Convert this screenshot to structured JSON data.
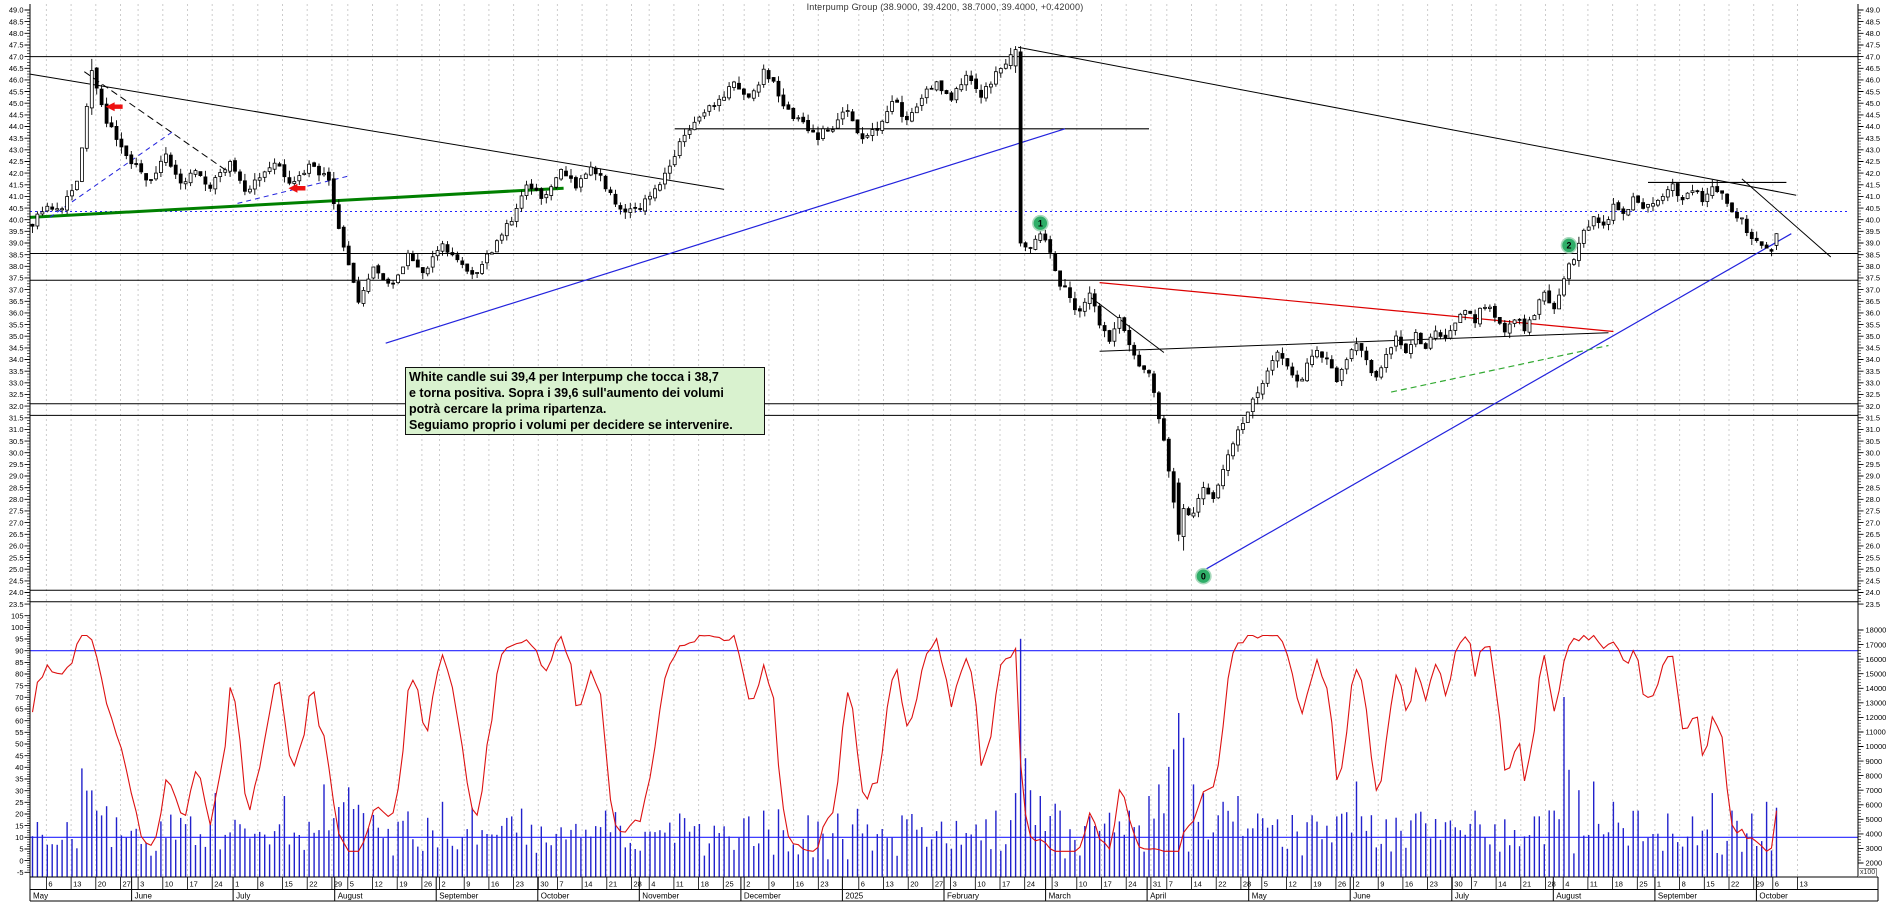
{
  "title": "Interpump Group (38.9000, 39.4200, 38.7000, 39.4000, +0.42000)",
  "scale_note": "x100",
  "annotation": {
    "lines": [
      "White candle sui 39,4 per Interpump che tocca i 38,7",
      "e torna positiva. Sopra i 39,6 sull'aumento dei volumi",
      "potrà cercare la prima ripartenza.",
      "Seguiamo proprio i volumi per decidere se intervenire."
    ]
  },
  "chart_data": {
    "type": "candlestick",
    "instrument": "Interpump Group",
    "last_quote": {
      "open": 38.9,
      "high": 39.42,
      "low": 38.7,
      "close": 39.4,
      "change": "+0.42000"
    },
    "price_axis": {
      "min": 23.5,
      "max": 49.0,
      "step": 0.5,
      "tick_labels": [
        "49.0",
        "48.5",
        "48.0",
        "47.5",
        "47.0",
        "46.5",
        "46.0",
        "45.5",
        "45.0",
        "44.5",
        "44.0",
        "43.5",
        "43.0",
        "42.5",
        "42.0",
        "41.5",
        "41.0",
        "40.5",
        "40.0",
        "39.5",
        "39.0",
        "38.5",
        "38.0",
        "37.5",
        "37.0",
        "36.5",
        "36.0",
        "35.5",
        "35.0",
        "34.5",
        "34.0",
        "33.5",
        "33.0",
        "32.5",
        "32.0",
        "31.5",
        "31.0",
        "30.5",
        "30.0",
        "29.5",
        "29.0",
        "28.5",
        "28.0",
        "27.5",
        "27.0",
        "26.5",
        "26.0",
        "25.5",
        "25.0",
        "24.5",
        "24.0",
        "23.5"
      ]
    },
    "oscillator_axis": {
      "min": -5,
      "max": 105,
      "step": 5,
      "bands": [
        90,
        10
      ],
      "tick_labels": [
        "105",
        "100",
        "95",
        "90",
        "85",
        "80",
        "75",
        "70",
        "65",
        "60",
        "55",
        "50",
        "45",
        "40",
        "35",
        "30",
        "25",
        "20",
        "15",
        "10",
        "5",
        "0",
        "-5"
      ]
    },
    "oscillator": {
      "type": "stochastic",
      "lookback": 12
    },
    "volume_axis": {
      "unit": "x100",
      "step": 1000,
      "tick_labels": [
        "18000",
        "17000",
        "16000",
        "15000",
        "14000",
        "13000",
        "12000",
        "11000",
        "10000",
        "9000",
        "8000",
        "7000",
        "6000",
        "5000",
        "4000",
        "3000",
        "2000"
      ]
    },
    "x_axis": {
      "months": [
        {
          "label": "May",
          "days": [
            6,
            13,
            20,
            27
          ]
        },
        {
          "label": "June",
          "days": [
            3,
            10,
            17,
            24
          ]
        },
        {
          "label": "July",
          "days": [
            1,
            8,
            15,
            22,
            29
          ]
        },
        {
          "label": "August",
          "days": [
            5,
            12,
            19,
            26
          ]
        },
        {
          "label": "September",
          "days": [
            2,
            9,
            16,
            23,
            30
          ]
        },
        {
          "label": "October",
          "days": [
            7,
            14,
            21,
            28
          ]
        },
        {
          "label": "November",
          "days": [
            4,
            11,
            18,
            25
          ]
        },
        {
          "label": "December",
          "days": [
            2,
            9,
            16,
            23
          ]
        },
        {
          "label": "2025",
          "days": [
            6,
            13,
            20,
            27
          ]
        },
        {
          "label": "February",
          "days": [
            3,
            10,
            17,
            24
          ]
        },
        {
          "label": "March",
          "days": [
            3,
            10,
            17,
            24,
            31
          ]
        },
        {
          "label": "April",
          "days": [
            7,
            14,
            22,
            28
          ]
        },
        {
          "label": "May",
          "days": [
            5,
            12,
            19,
            26
          ]
        },
        {
          "label": "June",
          "days": [
            2,
            9,
            16,
            23,
            30
          ]
        },
        {
          "label": "July",
          "days": [
            7,
            14,
            21,
            28
          ]
        },
        {
          "label": "August",
          "days": [
            4,
            11,
            18,
            25
          ]
        },
        {
          "label": "September",
          "days": [
            1,
            8,
            15,
            22,
            29
          ]
        },
        {
          "label": "October",
          "days": [
            6,
            13
          ]
        }
      ]
    },
    "price_swings": [
      [
        0,
        39.9
      ],
      [
        3,
        40.7
      ],
      [
        5,
        40.3
      ],
      [
        9,
        41.5
      ],
      [
        12,
        46.4
      ],
      [
        15,
        44.3
      ],
      [
        18,
        43.0
      ],
      [
        21,
        42.2
      ],
      [
        24,
        41.6
      ],
      [
        27,
        42.7
      ],
      [
        30,
        41.4
      ],
      [
        33,
        42.1
      ],
      [
        36,
        41.5
      ],
      [
        40,
        42.4
      ],
      [
        43,
        41.1
      ],
      [
        46,
        41.8
      ],
      [
        49,
        42.5
      ],
      [
        52,
        41.4
      ],
      [
        56,
        42.3
      ],
      [
        60,
        41.7
      ],
      [
        62,
        39.8
      ],
      [
        66,
        36.5
      ],
      [
        69,
        37.9
      ],
      [
        72,
        37.1
      ],
      [
        76,
        38.4
      ],
      [
        79,
        37.7
      ],
      [
        83,
        38.9
      ],
      [
        86,
        38.2
      ],
      [
        89,
        37.5
      ],
      [
        93,
        38.7
      ],
      [
        97,
        40.0
      ],
      [
        100,
        41.4
      ],
      [
        103,
        41.0
      ],
      [
        107,
        42.0
      ],
      [
        110,
        41.4
      ],
      [
        113,
        42.3
      ],
      [
        116,
        41.5
      ],
      [
        120,
        40.2
      ],
      [
        123,
        40.5
      ],
      [
        126,
        41.4
      ],
      [
        129,
        42.2
      ],
      [
        132,
        43.7
      ],
      [
        136,
        44.5
      ],
      [
        139,
        45.2
      ],
      [
        142,
        45.8
      ],
      [
        145,
        45.1
      ],
      [
        148,
        46.3
      ],
      [
        150,
        45.9
      ],
      [
        153,
        44.6
      ],
      [
        156,
        44.1
      ],
      [
        159,
        43.6
      ],
      [
        162,
        44.0
      ],
      [
        165,
        44.7
      ],
      [
        168,
        43.5
      ],
      [
        171,
        44.0
      ],
      [
        174,
        45.2
      ],
      [
        177,
        44.3
      ],
      [
        180,
        45.3
      ],
      [
        183,
        45.8
      ],
      [
        186,
        45.3
      ],
      [
        189,
        46.1
      ],
      [
        192,
        45.3
      ],
      [
        195,
        46.2
      ],
      [
        198,
        47.0
      ],
      [
        199,
        47.3
      ],
      [
        200,
        39.0
      ],
      [
        202,
        38.7
      ],
      [
        204,
        39.3
      ],
      [
        206,
        38.6
      ],
      [
        208,
        37.3
      ],
      [
        210,
        36.6
      ],
      [
        212,
        36.0
      ],
      [
        214,
        36.8
      ],
      [
        216,
        35.5
      ],
      [
        218,
        34.9
      ],
      [
        220,
        35.7
      ],
      [
        222,
        34.5
      ],
      [
        224,
        33.9
      ],
      [
        226,
        33.4
      ],
      [
        228,
        31.6
      ],
      [
        230,
        29.2
      ],
      [
        232,
        26.5
      ],
      [
        233,
        27.6
      ],
      [
        235,
        27.4
      ],
      [
        237,
        28.6
      ],
      [
        239,
        28.0
      ],
      [
        241,
        29.4
      ],
      [
        244,
        30.9
      ],
      [
        246,
        31.6
      ],
      [
        248,
        32.7
      ],
      [
        250,
        33.5
      ],
      [
        252,
        34.3
      ],
      [
        254,
        33.8
      ],
      [
        256,
        32.9
      ],
      [
        258,
        33.7
      ],
      [
        260,
        34.5
      ],
      [
        262,
        33.9
      ],
      [
        264,
        33.2
      ],
      [
        266,
        34.1
      ],
      [
        268,
        34.7
      ],
      [
        270,
        33.9
      ],
      [
        272,
        33.1
      ],
      [
        274,
        34.1
      ],
      [
        276,
        34.9
      ],
      [
        278,
        34.3
      ],
      [
        280,
        35.1
      ],
      [
        282,
        34.6
      ],
      [
        284,
        35.3
      ],
      [
        286,
        34.8
      ],
      [
        288,
        35.6
      ],
      [
        290,
        36.2
      ],
      [
        292,
        35.7
      ],
      [
        294,
        36.4
      ],
      [
        296,
        35.9
      ],
      [
        298,
        35.1
      ],
      [
        300,
        35.8
      ],
      [
        302,
        35.3
      ],
      [
        304,
        36.0
      ],
      [
        306,
        36.8
      ],
      [
        308,
        36.2
      ],
      [
        310,
        37.6
      ],
      [
        312,
        38.4
      ],
      [
        314,
        39.4
      ],
      [
        316,
        40.1
      ],
      [
        318,
        39.8
      ],
      [
        320,
        40.5
      ],
      [
        322,
        40.2
      ],
      [
        324,
        40.9
      ],
      [
        326,
        40.4
      ],
      [
        328,
        40.6
      ],
      [
        330,
        41.1
      ],
      [
        332,
        41.4
      ],
      [
        334,
        40.9
      ],
      [
        336,
        41.3
      ],
      [
        338,
        40.8
      ],
      [
        340,
        41.5
      ],
      [
        342,
        41.2
      ],
      [
        344,
        40.5
      ],
      [
        346,
        39.9
      ],
      [
        348,
        39.3
      ],
      [
        350,
        38.8
      ],
      [
        352,
        38.6
      ],
      [
        353,
        39.4
      ]
    ],
    "special_candles": {
      "12": [
        44.8,
        46.9,
        44.5,
        46.4
      ],
      "199": [
        46.6,
        47.45,
        46.3,
        47.3
      ],
      "200": [
        47.2,
        47.45,
        38.85,
        39.0
      ],
      "232": [
        28.7,
        28.9,
        26.2,
        26.5
      ],
      "233": [
        26.4,
        27.8,
        25.8,
        27.6
      ],
      "353": [
        38.9,
        39.42,
        38.7,
        39.4
      ]
    },
    "volume_spikes": [
      [
        10,
        8500
      ],
      [
        32,
        5200
      ],
      [
        37,
        6800
      ],
      [
        51,
        6600
      ],
      [
        59,
        7400
      ],
      [
        64,
        7200
      ],
      [
        66,
        6000
      ],
      [
        83,
        6200
      ],
      [
        89,
        5800
      ],
      [
        97,
        5200
      ],
      [
        116,
        5600
      ],
      [
        131,
        5400
      ],
      [
        145,
        5200
      ],
      [
        148,
        5600
      ],
      [
        163,
        5400
      ],
      [
        177,
        5000
      ],
      [
        195,
        5600
      ],
      [
        199,
        6800
      ],
      [
        200,
        17400
      ],
      [
        201,
        9200
      ],
      [
        202,
        7000
      ],
      [
        204,
        6600
      ],
      [
        208,
        5600
      ],
      [
        214,
        5200
      ],
      [
        222,
        5600
      ],
      [
        226,
        6600
      ],
      [
        228,
        7400
      ],
      [
        230,
        8600
      ],
      [
        231,
        9800
      ],
      [
        232,
        12300
      ],
      [
        233,
        10600
      ],
      [
        235,
        7400
      ],
      [
        237,
        6800
      ],
      [
        241,
        6200
      ],
      [
        244,
        6600
      ],
      [
        248,
        5400
      ],
      [
        252,
        5000
      ],
      [
        258,
        4800
      ],
      [
        264,
        5200
      ],
      [
        268,
        7600
      ],
      [
        274,
        5000
      ],
      [
        280,
        5400
      ],
      [
        286,
        4800
      ],
      [
        292,
        5600
      ],
      [
        298,
        5000
      ],
      [
        304,
        5200
      ],
      [
        308,
        5600
      ],
      [
        310,
        13400
      ],
      [
        311,
        8400
      ],
      [
        313,
        7000
      ],
      [
        316,
        7600
      ],
      [
        320,
        6200
      ],
      [
        325,
        5600
      ],
      [
        331,
        5400
      ],
      [
        336,
        5200
      ],
      [
        340,
        6800
      ],
      [
        344,
        5600
      ],
      [
        348,
        5400
      ],
      [
        351,
        6200
      ],
      [
        353,
        5800
      ]
    ],
    "horizontal_levels": [
      47.0,
      38.55,
      37.4,
      32.1,
      31.6,
      24.1,
      23.6
    ],
    "partial_levels": [
      {
        "price": 43.9,
        "d1": 130,
        "d2": 226
      },
      {
        "price": 41.6,
        "d1": 327,
        "d2": 355
      }
    ],
    "dotted_level": 40.35,
    "trendlines": [
      {
        "name": "downtrend-2024",
        "d1": -0.5,
        "p1": 46.25,
        "d2": 140,
        "p2": 41.3,
        "color": "#000000",
        "width": 1
      },
      {
        "name": "downtrend-2025",
        "d1": 199.5,
        "p1": 47.4,
        "d2": 357,
        "p2": 41.05,
        "color": "#000000",
        "width": 1
      },
      {
        "name": "breakdown-sep-2025",
        "d1": 346,
        "p1": 41.75,
        "d2": 364,
        "p2": 38.4,
        "color": "#000000",
        "width": 1
      },
      {
        "name": "uptrend-2024",
        "d1": 71.5,
        "p1": 34.7,
        "d2": 209,
        "p2": 43.9,
        "color": "#2222dd",
        "width": 1.2
      },
      {
        "name": "uptrend-2025",
        "d1": 237.5,
        "p1": 25.0,
        "d2": 356,
        "p2": 39.4,
        "color": "#2222dd",
        "width": 1.2
      },
      {
        "name": "support-green-2024",
        "d1": -0.5,
        "p1": 40.1,
        "d2": 107.5,
        "p2": 41.35,
        "color": "#008000",
        "width": 3
      },
      {
        "name": "resistance-red-2025",
        "d1": 216,
        "p1": 37.3,
        "d2": 320,
        "p2": 35.2,
        "color": "#dd0000",
        "width": 1.2
      },
      {
        "name": "wedge-green-dashed",
        "d1": 275,
        "p1": 32.6,
        "d2": 319,
        "p2": 34.6,
        "color": "#33aa33",
        "width": 1.2,
        "dash": "6,4"
      },
      {
        "name": "wedge-lower-black",
        "d1": 216,
        "p1": 34.35,
        "d2": 319,
        "p2": 35.15,
        "color": "#000000",
        "width": 1
      },
      {
        "name": "pennant-mar-2025",
        "d1": 214,
        "p1": 36.7,
        "d2": 229,
        "p2": 34.3,
        "color": "#000000",
        "width": 1
      },
      {
        "name": "dash-black-2024",
        "d1": 10.5,
        "p1": 46.35,
        "d2": 40,
        "p2": 42.0,
        "color": "#000000",
        "width": 1,
        "dash": "7,4"
      },
      {
        "name": "dash-blue-may-2024",
        "d1": 3.5,
        "p1": 40.1,
        "d2": 28.5,
        "p2": 43.8,
        "color": "#2222dd",
        "width": 1,
        "dash": "5,4"
      },
      {
        "name": "dash-blue-jul-2024",
        "d1": 41.5,
        "p1": 40.7,
        "d2": 64.5,
        "p2": 41.9,
        "color": "#2222dd",
        "width": 1,
        "dash": "5,4"
      }
    ],
    "markers": [
      {
        "label": "1",
        "day": 204,
        "price": 39.85
      },
      {
        "label": "2",
        "day": 311,
        "price": 38.9
      },
      {
        "label": "0",
        "day": 237,
        "price": 24.7
      }
    ],
    "arrows": [
      {
        "day": 14,
        "price": 44.85
      },
      {
        "day": 51,
        "price": 41.35
      }
    ],
    "colors": {
      "up": "#ffffff",
      "down": "#000000",
      "wick": "#000000",
      "volume": "#2222cc",
      "oscillator": "#dd1111",
      "band": "#2222ff",
      "grid": "#cccccc",
      "dotted_blue": "#2222ff",
      "marker_green": "#2fae68",
      "marker_ring": "#a8d8bc",
      "arrow_red": "#ee1111"
    }
  }
}
